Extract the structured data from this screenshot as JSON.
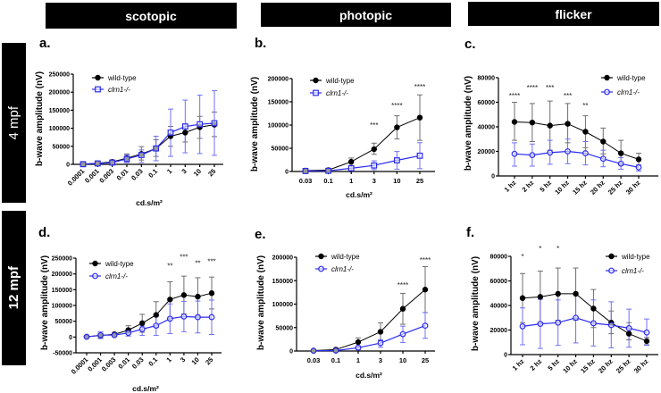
{
  "headers": [
    "scotopic",
    "photopic",
    "flicker"
  ],
  "rows": [
    "4 mpf",
    "12 mpf"
  ],
  "chart_data": [
    {
      "id": "a",
      "panel": "a.",
      "type": "line",
      "condition": "scotopic",
      "age": "4 mpf",
      "categories": [
        "0.0001",
        "0.001",
        "0.003",
        "0.01",
        "0.03",
        "0.1",
        "1",
        "3",
        "10",
        "25"
      ],
      "xlabel": "cd.s/m²",
      "ylabel": "b-wave amplitude (nV)",
      "ylim": [
        0,
        250000
      ],
      "yticks": [
        "0",
        "50000",
        "100000",
        "150000",
        "200000",
        "250000"
      ],
      "legend": "top-left",
      "grid": false,
      "series": [
        {
          "name": "wild-type",
          "marker": "circle-filled",
          "color": "#000000",
          "error_color": "#6e6e6e",
          "values": [
            1000,
            3000,
            7000,
            17000,
            29000,
            44000,
            78000,
            88000,
            103000,
            110000
          ],
          "err_low": [
            0,
            0,
            2000,
            8000,
            12000,
            22000,
            50000,
            62000,
            72000,
            77000
          ],
          "err_high": [
            2000,
            5000,
            11000,
            29000,
            49000,
            68000,
            105000,
            112000,
            133000,
            145000
          ]
        },
        {
          "name": "clrn1-/-",
          "marker": "square-open",
          "color": "#2b2bf0",
          "error_color": "#7070f5",
          "values": [
            500,
            2500,
            5000,
            15000,
            26000,
            44000,
            88000,
            105000,
            111000,
            114000
          ],
          "err_low": [
            0,
            500,
            1000,
            5000,
            5000,
            10000,
            22000,
            32000,
            30000,
            25000
          ],
          "err_high": [
            1500,
            5000,
            10000,
            26000,
            40000,
            78000,
            153000,
            178000,
            192000,
            204000
          ]
        }
      ],
      "annotations": []
    },
    {
      "id": "b",
      "panel": "b.",
      "type": "line",
      "condition": "photopic",
      "age": "4 mpf",
      "categories": [
        "0.03",
        "0.1",
        "1",
        "3",
        "10",
        "25"
      ],
      "xlabel": "cd.s/m²",
      "ylabel": "b-wave amplitude (nV)",
      "ylim": [
        0,
        200000
      ],
      "yticks": [
        "0",
        "50000",
        "100000",
        "150000",
        "200000"
      ],
      "legend": "top-left",
      "grid": false,
      "series": [
        {
          "name": "wild-type",
          "marker": "circle-filled",
          "color": "#000000",
          "error_color": "#6e6e6e",
          "values": [
            2000,
            3000,
            21000,
            48000,
            95000,
            116000
          ],
          "err_low": [
            1000,
            1500,
            13000,
            37000,
            70000,
            67000
          ],
          "err_high": [
            3000,
            5000,
            29000,
            61000,
            120000,
            165000
          ]
        },
        {
          "name": "clrn1-/-",
          "marker": "square-open",
          "color": "#2b2bf0",
          "error_color": "#7070f5",
          "values": [
            1000,
            1500,
            7000,
            13000,
            24000,
            34000
          ],
          "err_low": [
            500,
            500,
            2000,
            4000,
            5000,
            6000
          ],
          "err_high": [
            1500,
            2500,
            12000,
            23000,
            43000,
            62000
          ]
        }
      ],
      "annotations": [
        {
          "category": "3",
          "y": 100000,
          "label": "***"
        },
        {
          "category": "10",
          "y": 142000,
          "label": "****"
        },
        {
          "category": "25",
          "y": 183000,
          "label": "****"
        }
      ]
    },
    {
      "id": "c",
      "panel": "c.",
      "type": "line",
      "condition": "flicker",
      "age": "4 mpf",
      "categories": [
        "1 hz",
        "2 hz",
        "5 hz",
        "10 hz",
        "15 hz",
        "20 hz",
        "25 hz",
        "30 hz"
      ],
      "xlabel": "",
      "ylabel": "b-wave amplitude (nV)",
      "ylim": [
        0,
        80000
      ],
      "yticks": [
        "0",
        "20000",
        "40000",
        "60000",
        "80000"
      ],
      "legend": "top-right",
      "grid": false,
      "series": [
        {
          "name": "wild-type",
          "marker": "circle-filled",
          "color": "#000000",
          "error_color": "#6e6e6e",
          "values": [
            44000,
            43500,
            41000,
            42500,
            36000,
            28000,
            18500,
            13500
          ],
          "err_low": [
            29000,
            28000,
            21000,
            27000,
            23000,
            18000,
            9000,
            9000
          ],
          "err_high": [
            60000,
            59000,
            61000,
            59000,
            49000,
            39000,
            29000,
            18500
          ]
        },
        {
          "name": "clrn1-/-",
          "marker": "circle-open",
          "color": "#2b2bf0",
          "error_color": "#7070f5",
          "values": [
            18000,
            17000,
            19000,
            20000,
            18500,
            14000,
            10000,
            7000
          ],
          "err_low": [
            8000,
            8000,
            9500,
            10000,
            9000,
            7500,
            5500,
            4000
          ],
          "err_high": [
            27000,
            26000,
            29000,
            30000,
            28000,
            21000,
            15000,
            9000
          ]
        }
      ],
      "annotations": [
        {
          "category": "1 hz",
          "y": 65500,
          "label": "****"
        },
        {
          "category": "2 hz",
          "y": 72000,
          "label": "****"
        },
        {
          "category": "5 hz",
          "y": 72000,
          "label": "***"
        },
        {
          "category": "10 hz",
          "y": 65500,
          "label": "***"
        },
        {
          "category": "15 hz",
          "y": 57500,
          "label": "**"
        }
      ]
    },
    {
      "id": "d",
      "panel": "d.",
      "type": "line",
      "condition": "scotopic",
      "age": "12 mpf",
      "categories": [
        "0.0001",
        "0.001",
        "0.003",
        "0.01",
        "0.03",
        "0.1",
        "1",
        "3",
        "10",
        "25"
      ],
      "xlabel": "cd.s/m²",
      "ylabel": "b-wave amplitude (nV)",
      "ylim": [
        -50000,
        250000
      ],
      "yticks": [
        "-50000",
        "0",
        "50000",
        "100000",
        "150000",
        "200000",
        "250000"
      ],
      "legend": "top-left",
      "grid": false,
      "series": [
        {
          "name": "wild-type",
          "marker": "circle-filled",
          "color": "#000000",
          "error_color": "#6e6e6e",
          "values": [
            1000,
            5000,
            9000,
            22000,
            44000,
            70000,
            119000,
            133000,
            128000,
            139000
          ],
          "err_low": [
            0,
            -2000,
            4000,
            10000,
            15000,
            30000,
            60000,
            73000,
            68000,
            89000
          ],
          "err_high": [
            2000,
            12000,
            13000,
            36000,
            72000,
            112000,
            175000,
            193000,
            188000,
            190000
          ]
        },
        {
          "name": "clrn1-/-",
          "marker": "circle-open",
          "color": "#2b2bf0",
          "error_color": "#7070f5",
          "values": [
            500,
            6000,
            6000,
            13000,
            25000,
            36000,
            58000,
            65000,
            63000,
            63000
          ],
          "err_low": [
            -500,
            -5000,
            1000,
            3000,
            5000,
            5000,
            11000,
            17000,
            13000,
            8000
          ],
          "err_high": [
            1500,
            17000,
            11000,
            22000,
            35000,
            65000,
            105000,
            113000,
            114000,
            117000
          ]
        }
      ],
      "annotations": [
        {
          "category": "1",
          "y": 226000,
          "label": "**"
        },
        {
          "category": "3",
          "y": 254000,
          "label": "***"
        },
        {
          "category": "10",
          "y": 234000,
          "label": "**"
        },
        {
          "category": "25",
          "y": 240000,
          "label": "***"
        }
      ]
    },
    {
      "id": "e",
      "panel": "e.",
      "type": "line",
      "condition": "photopic",
      "age": "12 mpf",
      "categories": [
        "0.03",
        "0.1",
        "1",
        "3",
        "10",
        "25"
      ],
      "xlabel": "cd.s/m²",
      "ylabel": "b-wave amplitude (nV)",
      "ylim": [
        0,
        200000
      ],
      "yticks": [
        "0",
        "50000",
        "100000",
        "150000",
        "200000"
      ],
      "legend": "top-left",
      "grid": false,
      "series": [
        {
          "name": "wild-type",
          "marker": "circle-filled",
          "color": "#000000",
          "error_color": "#6e6e6e",
          "values": [
            1000,
            3000,
            19000,
            41000,
            90000,
            131000
          ],
          "err_low": [
            500,
            1500,
            10000,
            22000,
            57000,
            82000
          ],
          "err_high": [
            2000,
            5000,
            28000,
            60000,
            123000,
            180000
          ]
        },
        {
          "name": "clrn1-/-",
          "marker": "circle-open",
          "color": "#2b2bf0",
          "error_color": "#7070f5",
          "values": [
            500,
            1000,
            7000,
            17000,
            36000,
            54000
          ],
          "err_low": [
            200,
            500,
            3000,
            8000,
            18000,
            27000
          ],
          "err_high": [
            1000,
            2000,
            10000,
            24000,
            53000,
            82000
          ]
        }
      ],
      "annotations": [
        {
          "category": "10",
          "y": 141000,
          "label": "****"
        },
        {
          "category": "25",
          "y": 194000,
          "label": "****"
        }
      ]
    },
    {
      "id": "f",
      "panel": "f.",
      "type": "line",
      "condition": "flicker",
      "age": "12 mpf",
      "categories": [
        "1 hz",
        "2 hz",
        "5 hz",
        "10 hz",
        "15 hz",
        "20 hz",
        "25 hz",
        "30 hz"
      ],
      "xlabel": "",
      "ylabel": "b-wave amplitude (nV)",
      "ylim": [
        0,
        80000
      ],
      "yticks": [
        "0",
        "20000",
        "40000",
        "60000",
        "80000"
      ],
      "legend": "top-right",
      "grid": false,
      "series": [
        {
          "name": "wild-type",
          "marker": "circle-filled",
          "color": "#000000",
          "error_color": "#6e6e6e",
          "values": [
            46000,
            47000,
            49500,
            49500,
            37500,
            26000,
            17000,
            11000
          ],
          "err_low": [
            26000,
            26000,
            28000,
            28000,
            22000,
            17000,
            12000,
            8000
          ],
          "err_high": [
            66000,
            68000,
            70500,
            70500,
            53000,
            35500,
            26000,
            14000
          ]
        },
        {
          "name": "clrn1-/-",
          "marker": "circle-open",
          "color": "#2b2bf0",
          "error_color": "#7070f5",
          "values": [
            23000,
            25000,
            26000,
            30000,
            25500,
            24000,
            21500,
            18000
          ],
          "err_low": [
            8000,
            5000,
            7500,
            9500,
            7000,
            5500,
            6000,
            7500
          ],
          "err_high": [
            38000,
            45000,
            44500,
            50000,
            44500,
            43000,
            37000,
            29000
          ]
        }
      ],
      "annotations": [
        {
          "category": "1 hz",
          "y": 80000,
          "label": "*"
        },
        {
          "category": "2 hz",
          "y": 86500,
          "label": "*"
        },
        {
          "category": "5 hz",
          "y": 86500,
          "label": "*"
        }
      ]
    }
  ]
}
